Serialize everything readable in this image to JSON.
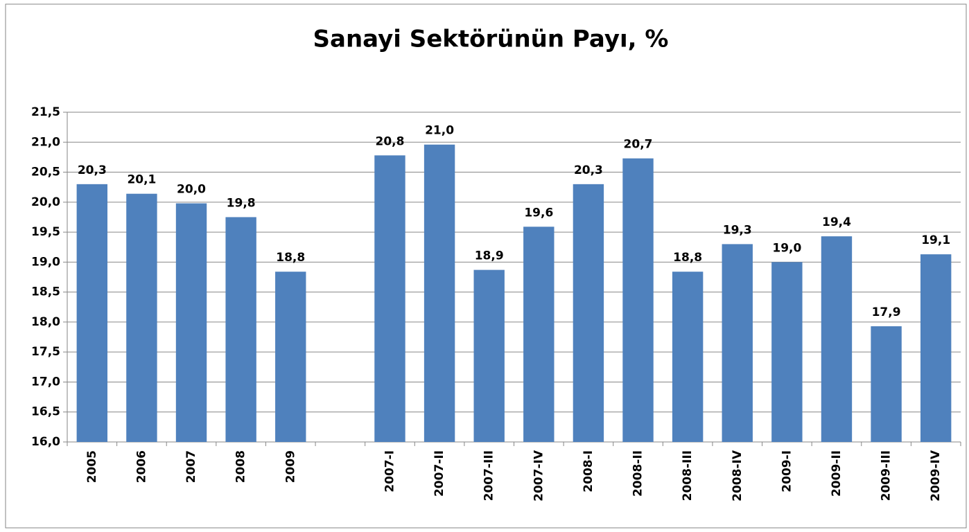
{
  "chart_data": {
    "type": "bar",
    "title": "Sanayi Sektörünün Payı, %",
    "categories": [
      "2005",
      "2006",
      "2007",
      "2008",
      "2009",
      null,
      "2007-I",
      "2007-II",
      "2007-III",
      "2007-IV",
      "2008-I",
      "2008-II",
      "2008-III",
      "2008-IV",
      "2009-I",
      "2009-II",
      "2009-III",
      "2009-IV"
    ],
    "values": [
      20.3,
      20.14,
      19.98,
      19.75,
      18.84,
      null,
      20.78,
      20.96,
      18.87,
      19.59,
      20.3,
      20.73,
      18.84,
      19.3,
      19.0,
      19.43,
      17.93,
      19.13
    ],
    "value_labels": [
      "20,3",
      "20,1",
      "20,0",
      "19,8",
      "18,8",
      null,
      "20,8",
      "21,0",
      "18,9",
      "19,6",
      "20,3",
      "20,7",
      "18,8",
      "19,3",
      "19,0",
      "19,4",
      "17,9",
      "19,1"
    ],
    "color": "#4f81bd",
    "ylim": [
      16,
      21.5
    ],
    "yticks": [
      {
        "value": 16,
        "label": "16,0"
      },
      {
        "value": 16.5,
        "label": "16,5"
      },
      {
        "value": 17,
        "label": "17,0"
      },
      {
        "value": 17.5,
        "label": "17,5"
      },
      {
        "value": 18,
        "label": "18,0"
      },
      {
        "value": 18.5,
        "label": "18,5"
      },
      {
        "value": 19,
        "label": "19,0"
      },
      {
        "value": 19.5,
        "label": "19,5"
      },
      {
        "value": 20,
        "label": "20,0"
      },
      {
        "value": 20.5,
        "label": "20,5"
      },
      {
        "value": 21,
        "label": "21,0"
      },
      {
        "value": 21.5,
        "label": "21,5"
      }
    ],
    "grid": true
  }
}
